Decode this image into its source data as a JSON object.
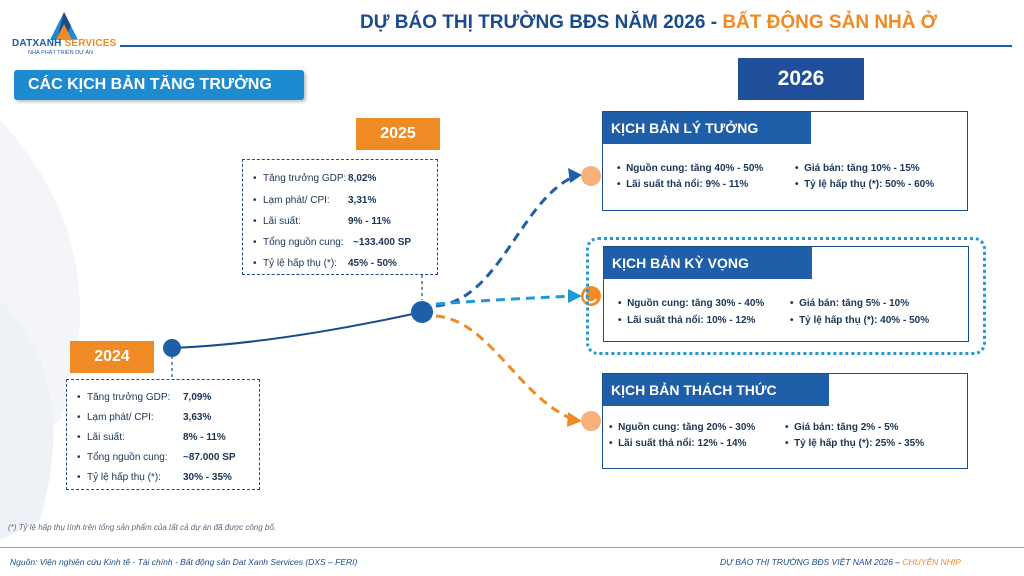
{
  "brand": {
    "logo_name_1": "DATXANH",
    "logo_name_2": " SERVICES",
    "logo_tagline": "NHÀ PHÁT TRIỂN DỰ ÁN"
  },
  "header": {
    "title_main": "DỰ BÁO THỊ TRƯỜNG BĐS NĂM 2026 - ",
    "title_accent": "BẤT ĐỘNG SẢN NHÀ Ở"
  },
  "section_title": "CÁC KỊCH BẢN TĂNG TRƯỞNG",
  "years": {
    "y2024": "2024",
    "y2025": "2025",
    "y2026": "2026"
  },
  "stats_2025": [
    {
      "label": "Tăng trưởng GDP:",
      "value": "8,02%"
    },
    {
      "label": "Lạm phát/ CPI:",
      "value": "3,31%"
    },
    {
      "label": "Lãi suất:",
      "value": "9% - 11%"
    },
    {
      "label": "Tổng nguồn cung:",
      "value": "~133.400 SP"
    },
    {
      "label": "Tỷ lệ hấp thụ (*):",
      "value": "45% - 50%"
    }
  ],
  "stats_2024": [
    {
      "label": "Tăng trưởng GDP:",
      "value": "7,09%"
    },
    {
      "label": "Lạm phát/ CPI:",
      "value": "3,63%"
    },
    {
      "label": "Lãi suất:",
      "value": "8% - 11%"
    },
    {
      "label": "Tổng nguồn cung:",
      "value": "~87.000 SP"
    },
    {
      "label": "Tỷ lệ hấp thụ (*):",
      "value": "30% - 35%"
    }
  ],
  "scenarios": {
    "ideal": {
      "title": "KỊCH BẢN LÝ TƯỞNG",
      "supply": "Nguồn cung: tăng 40% - 50%",
      "price": "Giá bán: tăng 10% - 15%",
      "rate": "Lãi suất thả nổi: 9% - 11%",
      "absorption": "Tỷ lệ hấp thụ (*): 50% - 60%"
    },
    "expected": {
      "title": "KỊCH BẢN KỲ VỌNG",
      "supply": "Nguồn cung: tăng 30% - 40%",
      "price": "Giá bán: tăng 5% - 10%",
      "rate": "Lãi suất thả nổi: 10% - 12%",
      "absorption": "Tỷ lệ hấp thụ (*): 40% - 50%"
    },
    "challenge": {
      "title": "KỊCH BẢN THÁCH THỨC",
      "supply": "Nguồn cung: tăng 20% - 30%",
      "price": "Giá bán: tăng 2% - 5%",
      "rate": "Lãi suất thả nổi: 12% - 14%",
      "absorption": "Tỷ lệ hấp thụ (*): 25% - 35%"
    }
  },
  "footnote": "(*) Tỷ lệ hấp thụ tính trên tổng sản phẩm của tất cả dự án đã được công bố.",
  "footer": {
    "source": "Nguồn: Viện nghiên cứu Kinh tế - Tài chính - Bất động sản Dat Xanh Services (DXS – FERI)",
    "right_main": "DỰ BÁO THỊ TRƯỜNG BĐS VIỆT NAM 2026 – ",
    "right_accent": "CHUYỂN NHỊP"
  },
  "colors": {
    "navy": "#1a4b8c",
    "blue": "#1f5ea8",
    "light_blue": "#1e9ad6",
    "orange": "#f08a24",
    "peach": "#f6b27a"
  }
}
